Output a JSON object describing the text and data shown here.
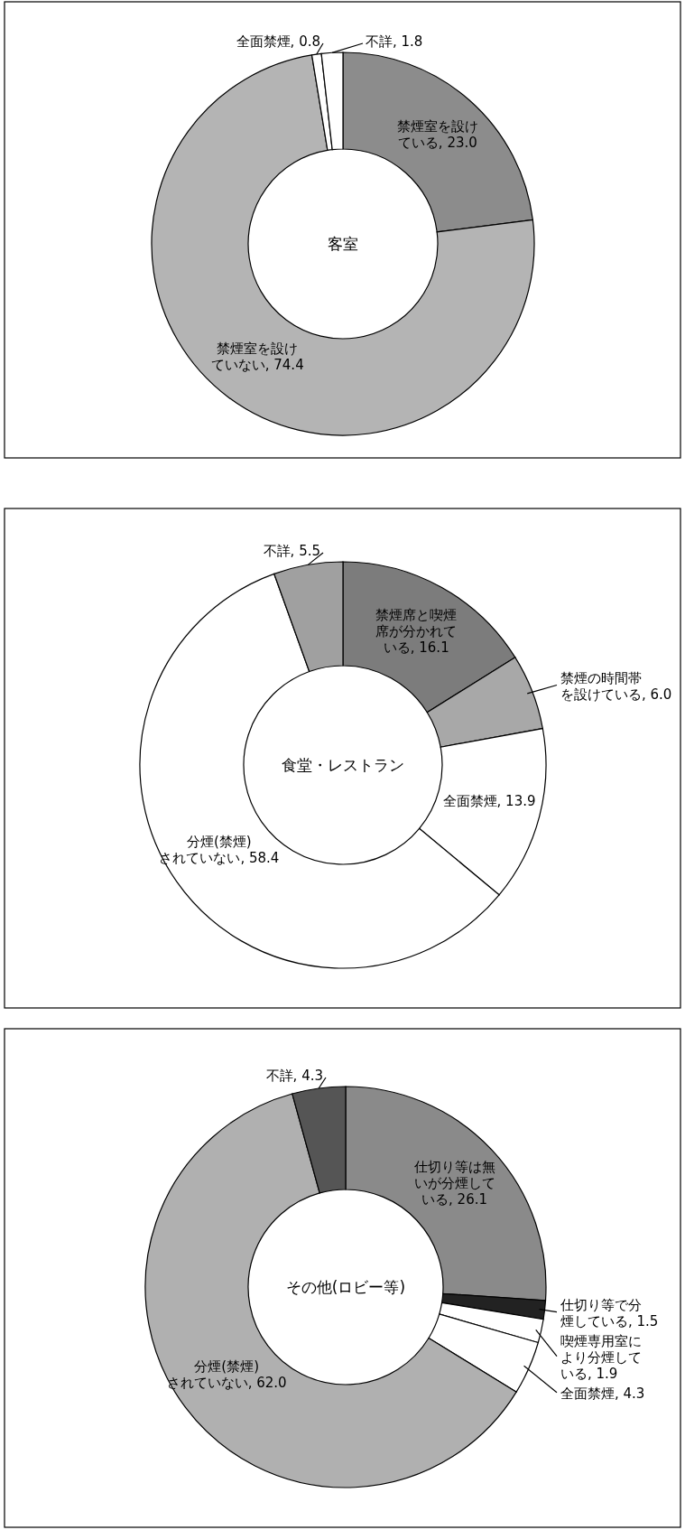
{
  "chart_data": [
    {
      "type": "donut",
      "title": "客室",
      "categories": [
        "禁煙室を設けている",
        "禁煙室を設けていない",
        "全面禁煙",
        "不詳"
      ],
      "values": [
        23.0,
        74.4,
        0.8,
        1.8
      ],
      "value_labels": [
        "23.0",
        "74.4",
        "0.8",
        "1.8"
      ],
      "colors": [
        "#8c8c8c",
        "#b4b4b4",
        "#ffffff",
        "#ffffff"
      ],
      "data_labels": true
    },
    {
      "type": "donut",
      "title": "食堂・レストラン",
      "categories": [
        "禁煙席と喫煙席が分かれている",
        "禁煙の時間帯を設けている",
        "全面禁煙",
        "分煙(禁煙)されていない",
        "不詳"
      ],
      "values": [
        16.1,
        6.0,
        13.9,
        58.4,
        5.5
      ],
      "value_labels": [
        "16.1",
        "6.0",
        "13.9",
        "58.4",
        "5.5"
      ],
      "colors": [
        "#7c7c7c",
        "#a8a8a8",
        "#ffffff",
        "#ffffff",
        "#a0a0a0"
      ],
      "data_labels": true
    },
    {
      "type": "donut",
      "title": "その他(ロビー等)",
      "categories": [
        "仕切り等は無いが分煙している",
        "仕切り等で分煙している",
        "喫煙専用室により分煙している",
        "全面禁煙",
        "分煙(禁煙)されていない",
        "不詳"
      ],
      "values": [
        26.1,
        1.5,
        1.9,
        4.3,
        62.0,
        4.3
      ],
      "value_labels": [
        "26.1",
        "1.5",
        "1.9",
        "4.3",
        "62.0",
        "4.3"
      ],
      "colors": [
        "#8a8a8a",
        "#222222",
        "#ffffff",
        "#ffffff",
        "#b0b0b0",
        "#555555"
      ],
      "data_labels": true
    }
  ]
}
